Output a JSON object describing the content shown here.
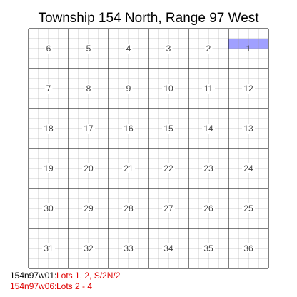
{
  "title": "Township 154 North, Range 97 West",
  "sections": [
    [
      6,
      5,
      4,
      3,
      2,
      1
    ],
    [
      7,
      8,
      9,
      10,
      11,
      12
    ],
    [
      18,
      17,
      16,
      15,
      14,
      13
    ],
    [
      19,
      20,
      21,
      22,
      23,
      24
    ],
    [
      30,
      29,
      28,
      27,
      26,
      25
    ],
    [
      31,
      32,
      33,
      34,
      35,
      36
    ]
  ],
  "highlighted": {
    "section": 1,
    "portion": "S/2N/2",
    "color": "#a0a0ff"
  },
  "notes": [
    {
      "key": "154n97w01:",
      "value": "Lots 1, 2, S/2N/2"
    },
    {
      "key": "154n97w06:",
      "value": "Lots 2 - 4"
    }
  ],
  "colors": {
    "grid_major": "#000000",
    "grid_minor": "#999999",
    "highlight": "#a0a0ff",
    "note_red": "#e00000"
  }
}
